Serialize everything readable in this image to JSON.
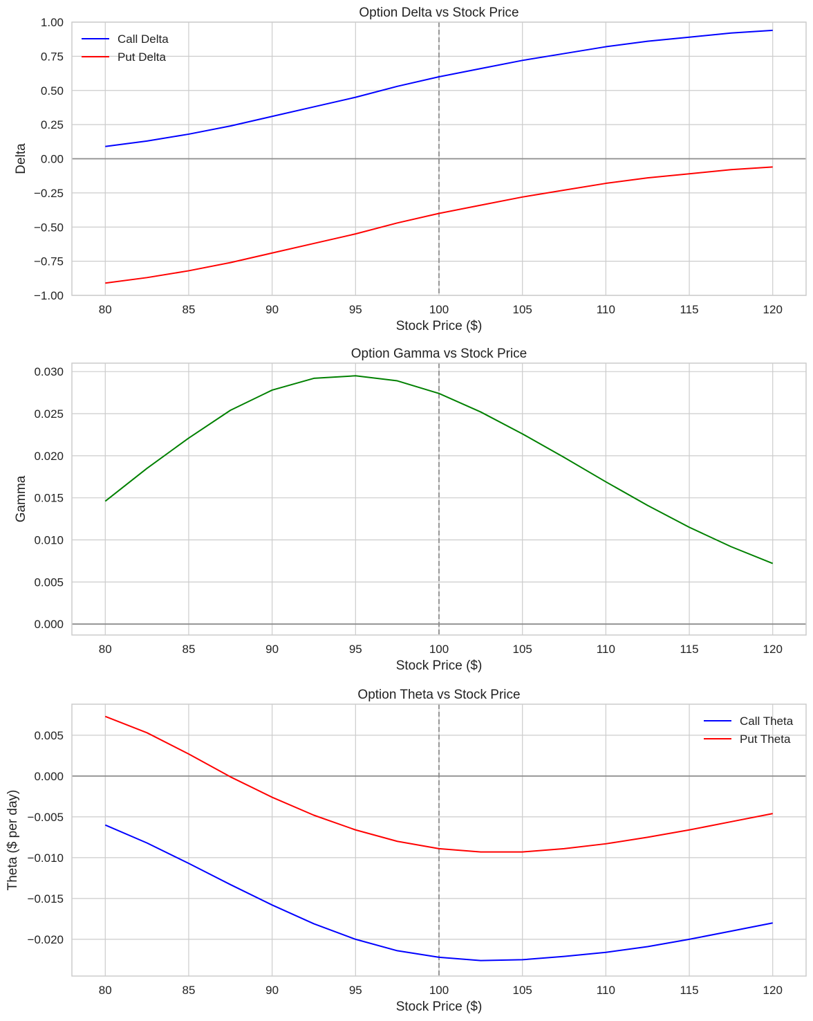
{
  "figure": {
    "background": "#ffffff",
    "grid_color": "#cccccc",
    "frame_color": "#cccccc",
    "zero_line_color": "#8c8c8c",
    "vline_color": "#8c8c8c"
  },
  "chart_data": [
    {
      "type": "line",
      "title": "Option Delta vs Stock Price",
      "xlabel": "Stock Price ($)",
      "ylabel": "Delta",
      "xlim": [
        78,
        122
      ],
      "ylim": [
        -1.0,
        1.0
      ],
      "xticks": [
        80,
        85,
        90,
        95,
        100,
        105,
        110,
        115,
        120
      ],
      "yticks": [
        1.0,
        0.75,
        0.5,
        0.25,
        0.0,
        -0.25,
        -0.5,
        -0.75,
        -1.0
      ],
      "ytick_labels": [
        "1.00",
        "0.75",
        "0.50",
        "0.25",
        "0.00",
        "−0.25",
        "−0.50",
        "−0.75",
        "−1.00"
      ],
      "grid": true,
      "hline": 0,
      "vline": 100,
      "legend_position": "top-left",
      "x": [
        80,
        82.5,
        85,
        87.5,
        90,
        92.5,
        95,
        97.5,
        100,
        102.5,
        105,
        107.5,
        110,
        112.5,
        115,
        117.5,
        120
      ],
      "series": [
        {
          "name": "Call Delta",
          "color": "#0000ff",
          "values": [
            0.09,
            0.13,
            0.18,
            0.24,
            0.31,
            0.38,
            0.45,
            0.53,
            0.6,
            0.66,
            0.72,
            0.77,
            0.82,
            0.86,
            0.89,
            0.92,
            0.94
          ]
        },
        {
          "name": "Put Delta",
          "color": "#ff0000",
          "values": [
            -0.91,
            -0.87,
            -0.82,
            -0.76,
            -0.69,
            -0.62,
            -0.55,
            -0.47,
            -0.4,
            -0.34,
            -0.28,
            -0.23,
            -0.18,
            -0.14,
            -0.11,
            -0.08,
            -0.06
          ]
        }
      ]
    },
    {
      "type": "line",
      "title": "Option Gamma vs Stock Price",
      "xlabel": "Stock Price ($)",
      "ylabel": "Gamma",
      "xlim": [
        78,
        122
      ],
      "ylim": [
        -0.0013,
        0.031
      ],
      "xticks": [
        80,
        85,
        90,
        95,
        100,
        105,
        110,
        115,
        120
      ],
      "yticks": [
        0.03,
        0.025,
        0.02,
        0.015,
        0.01,
        0.005,
        0.0
      ],
      "ytick_labels": [
        "0.030",
        "0.025",
        "0.020",
        "0.015",
        "0.010",
        "0.005",
        "0.000"
      ],
      "grid": true,
      "hline": 0,
      "vline": 100,
      "x": [
        80,
        82.5,
        85,
        87.5,
        90,
        92.5,
        95,
        97.5,
        100,
        102.5,
        105,
        107.5,
        110,
        112.5,
        115,
        117.5,
        120
      ],
      "series": [
        {
          "color": "#008000",
          "values": [
            0.0146,
            0.0185,
            0.0221,
            0.0254,
            0.0278,
            0.0292,
            0.0295,
            0.0289,
            0.0274,
            0.0252,
            0.0226,
            0.0198,
            0.0169,
            0.0141,
            0.0115,
            0.0092,
            0.0072
          ]
        }
      ]
    },
    {
      "type": "line",
      "title": "Option Theta vs Stock Price",
      "xlabel": "Stock Price ($)",
      "ylabel": "Theta ($ per day)",
      "xlim": [
        78,
        122
      ],
      "ylim": [
        -0.0245,
        0.0088
      ],
      "xticks": [
        80,
        85,
        90,
        95,
        100,
        105,
        110,
        115,
        120
      ],
      "yticks": [
        0.005,
        0.0,
        -0.005,
        -0.01,
        -0.015,
        -0.02
      ],
      "ytick_labels": [
        "0.005",
        "0.000",
        "−0.005",
        "−0.010",
        "−0.015",
        "−0.020"
      ],
      "grid": true,
      "hline": 0,
      "vline": 100,
      "legend_position": "top-right",
      "x": [
        80,
        82.5,
        85,
        87.5,
        90,
        92.5,
        95,
        97.5,
        100,
        102.5,
        105,
        107.5,
        110,
        112.5,
        115,
        117.5,
        120
      ],
      "series": [
        {
          "name": "Call Theta",
          "color": "#0000ff",
          "values": [
            -0.006,
            -0.0082,
            -0.0107,
            -0.0133,
            -0.0158,
            -0.0181,
            -0.02,
            -0.0214,
            -0.0222,
            -0.0226,
            -0.0225,
            -0.0221,
            -0.0216,
            -0.0209,
            -0.02,
            -0.019,
            -0.018
          ]
        },
        {
          "name": "Put Theta",
          "color": "#ff0000",
          "values": [
            0.0073,
            0.0053,
            0.0027,
            -0.0001,
            -0.0026,
            -0.0048,
            -0.0066,
            -0.008,
            -0.0089,
            -0.0093,
            -0.0093,
            -0.0089,
            -0.0083,
            -0.0075,
            -0.0066,
            -0.0056,
            -0.0046
          ]
        }
      ]
    }
  ]
}
